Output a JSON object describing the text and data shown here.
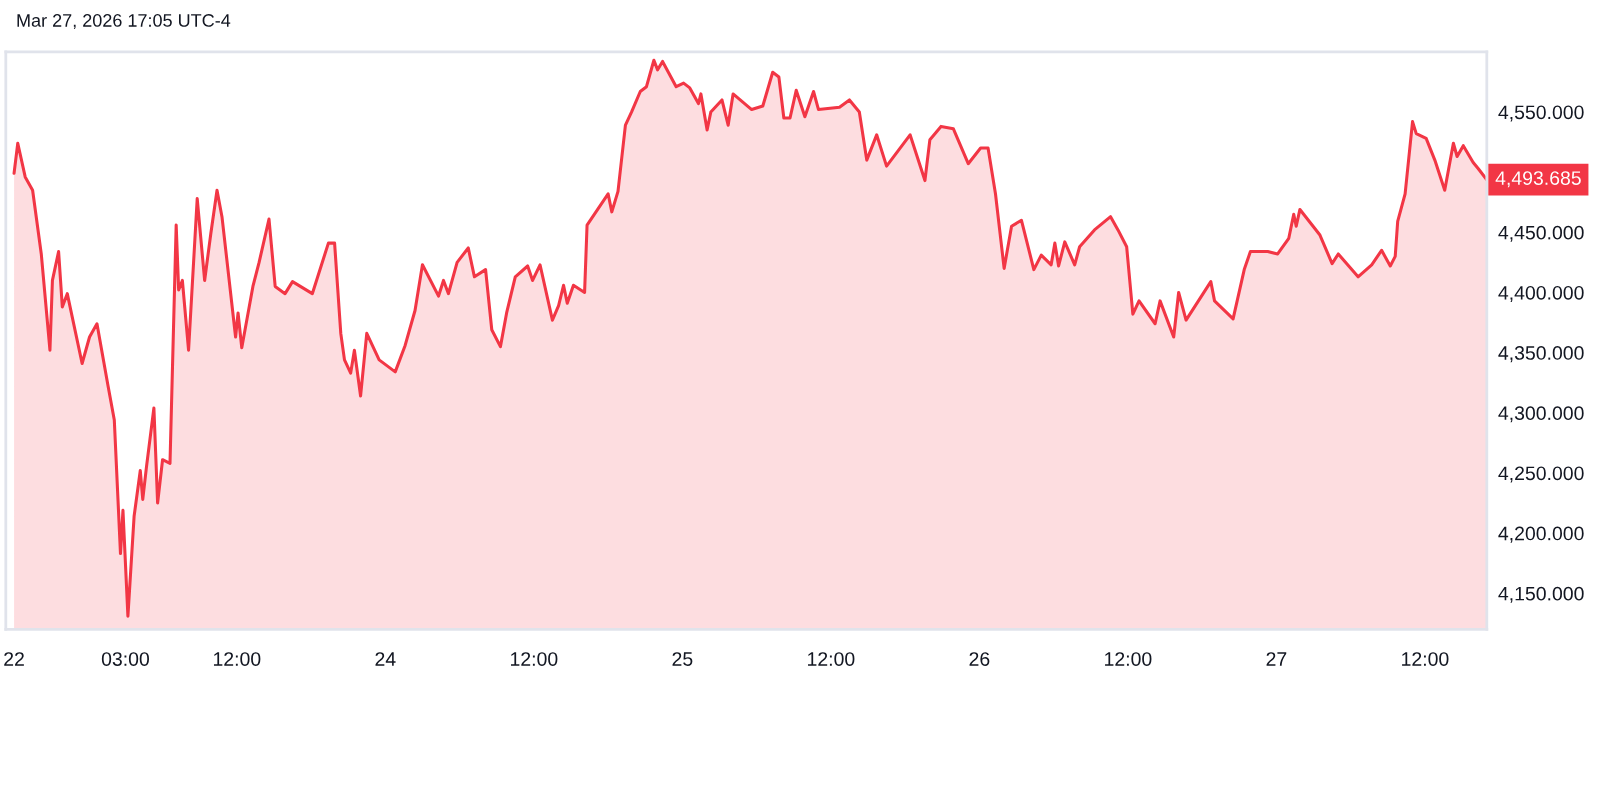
{
  "chart_data": {
    "type": "area",
    "annotations": [
      "Mar 27, 2026 17:05 UTC-4",
      {
        "text": "4,493.685",
        "x": "2026-03-27T17:00",
        "y": 4493.685
      }
    ],
    "x": [
      "2026-03-22T18:00",
      "2026-03-22T18:18",
      "2026-03-22T18:54",
      "2026-03-22T19:30",
      "2026-03-22T20:12",
      "2026-03-22T20:54",
      "2026-03-22T21:06",
      "2026-03-22T21:36",
      "2026-03-22T21:54",
      "2026-03-22T22:18",
      "2026-03-22T23:30",
      "2026-03-23T00:06",
      "2026-03-23T00:42",
      "2026-03-23T01:36",
      "2026-03-23T02:06",
      "2026-03-23T02:36",
      "2026-03-23T02:48",
      "2026-03-23T03:12",
      "2026-03-23T03:42",
      "2026-03-23T04:12",
      "2026-03-23T04:24",
      "2026-03-23T04:42",
      "2026-03-23T05:18",
      "2026-03-23T05:36",
      "2026-03-23T06:00",
      "2026-03-23T06:36",
      "2026-03-23T07:06",
      "2026-03-23T07:18",
      "2026-03-23T07:36",
      "2026-03-23T08:06",
      "2026-03-23T08:48",
      "2026-03-23T09:24",
      "2026-03-23T09:54",
      "2026-03-23T10:24",
      "2026-03-23T10:48",
      "2026-03-23T11:54",
      "2026-03-23T12:06",
      "2026-03-23T12:24",
      "2026-03-23T13:18",
      "2026-03-23T13:48",
      "2026-03-23T14:36",
      "2026-03-23T15:06",
      "2026-03-23T15:54",
      "2026-03-23T16:30",
      "2026-03-23T18:06",
      "2026-03-23T19:24",
      "2026-03-23T19:54",
      "2026-03-23T20:24",
      "2026-03-23T20:42",
      "2026-03-23T21:12",
      "2026-03-23T21:30",
      "2026-03-23T22:00",
      "2026-03-23T22:30",
      "2026-03-23T23:30",
      "2026-03-24T00:48",
      "2026-03-24T01:36",
      "2026-03-24T02:24",
      "2026-03-24T03:00",
      "2026-03-24T04:18",
      "2026-03-24T04:42",
      "2026-03-24T05:06",
      "2026-03-24T05:48",
      "2026-03-24T06:42",
      "2026-03-24T07:12",
      "2026-03-24T08:06",
      "2026-03-24T08:36",
      "2026-03-24T09:18",
      "2026-03-24T09:48",
      "2026-03-24T10:30",
      "2026-03-24T11:30",
      "2026-03-24T11:54",
      "2026-03-24T12:30",
      "2026-03-24T13:30",
      "2026-03-24T14:00",
      "2026-03-24T14:24",
      "2026-03-24T14:42",
      "2026-03-24T15:12",
      "2026-03-24T16:06",
      "2026-03-24T16:18",
      "2026-03-24T18:00",
      "2026-03-24T18:18",
      "2026-03-24T18:48",
      "2026-03-24T19:24",
      "2026-03-24T19:54",
      "2026-03-24T20:36",
      "2026-03-24T21:06",
      "2026-03-24T21:42",
      "2026-03-24T22:00",
      "2026-03-24T22:24",
      "2026-03-24T23:30",
      "2026-03-25T00:06",
      "2026-03-25T00:36",
      "2026-03-25T01:18",
      "2026-03-25T01:30",
      "2026-03-25T02:00",
      "2026-03-25T02:18",
      "2026-03-25T03:12",
      "2026-03-25T03:42",
      "2026-03-25T04:06",
      "2026-03-25T05:36",
      "2026-03-25T06:30",
      "2026-03-25T07:18",
      "2026-03-25T07:48",
      "2026-03-25T08:12",
      "2026-03-25T08:42",
      "2026-03-25T09:12",
      "2026-03-25T09:54",
      "2026-03-25T10:36",
      "2026-03-25T11:00",
      "2026-03-25T12:42",
      "2026-03-25T13:30",
      "2026-03-25T14:18",
      "2026-03-25T14:54",
      "2026-03-25T15:42",
      "2026-03-25T16:30",
      "2026-03-25T18:24",
      "2026-03-25T19:36",
      "2026-03-25T20:00",
      "2026-03-25T20:54",
      "2026-03-25T21:54",
      "2026-03-25T23:06",
      "2026-03-26T00:06",
      "2026-03-26T00:42",
      "2026-03-26T01:18",
      "2026-03-26T02:00",
      "2026-03-26T02:36",
      "2026-03-26T03:24",
      "2026-03-26T04:24",
      "2026-03-26T05:00",
      "2026-03-26T05:48",
      "2026-03-26T06:06",
      "2026-03-26T06:24",
      "2026-03-26T06:54",
      "2026-03-26T07:42",
      "2026-03-26T08:06",
      "2026-03-26T09:18",
      "2026-03-26T10:36",
      "2026-03-26T11:12",
      "2026-03-26T11:54",
      "2026-03-26T12:24",
      "2026-03-26T12:54",
      "2026-03-26T14:12",
      "2026-03-26T14:36",
      "2026-03-26T15:42",
      "2026-03-26T16:06",
      "2026-03-26T16:42",
      "2026-03-26T18:42",
      "2026-03-26T19:00",
      "2026-03-26T20:30",
      "2026-03-26T21:24",
      "2026-03-26T21:54",
      "2026-03-26T23:18",
      "2026-03-27T00:06",
      "2026-03-27T01:00",
      "2026-03-27T01:24",
      "2026-03-27T01:36",
      "2026-03-27T01:54",
      "2026-03-27T03:30",
      "2026-03-27T04:30",
      "2026-03-27T05:00",
      "2026-03-27T06:36",
      "2026-03-27T07:42",
      "2026-03-27T08:30",
      "2026-03-27T09:12",
      "2026-03-27T09:36",
      "2026-03-27T09:48",
      "2026-03-27T10:24",
      "2026-03-27T11:00",
      "2026-03-27T11:18",
      "2026-03-27T12:06",
      "2026-03-27T12:48",
      "2026-03-27T13:36",
      "2026-03-27T14:18",
      "2026-03-27T14:36",
      "2026-03-27T15:06",
      "2026-03-27T15:54",
      "2026-03-27T16:18",
      "2026-03-27T17:00"
    ],
    "series": [
      {
        "color": "#f23645",
        "values": [
          4499,
          4524,
          4496,
          4485,
          4432,
          4352,
          4410,
          4434,
          4388,
          4399,
          4341,
          4363,
          4374,
          4322,
          4294,
          4183,
          4219,
          4131,
          4214,
          4252,
          4228,
          4255,
          4304,
          4225,
          4261,
          4258,
          4456,
          4402,
          4410,
          4352,
          4478,
          4410,
          4449,
          4485,
          4463,
          4363,
          4383,
          4354,
          4405,
          4425,
          4461,
          4405,
          4399,
          4409,
          4399,
          4441,
          4441,
          4366,
          4344,
          4333,
          4352,
          4314,
          4366,
          4344,
          4334,
          4356,
          4385,
          4423,
          4397,
          4410,
          4399,
          4425,
          4437,
          4413,
          4419,
          4369,
          4355,
          4383,
          4413,
          4422,
          4410,
          4423,
          4377,
          4389,
          4406,
          4391,
          4406,
          4400,
          4456,
          4482,
          4467,
          4484,
          4539,
          4550,
          4567,
          4571,
          4593,
          4585,
          4592,
          4571,
          4574,
          4570,
          4557,
          4565,
          4535,
          4550,
          4560,
          4539,
          4565,
          4552,
          4555,
          4583,
          4579,
          4545,
          4545,
          4568,
          4546,
          4567,
          4552,
          4554,
          4560,
          4550,
          4510,
          4531,
          4505,
          4531,
          4493,
          4527,
          4538,
          4536,
          4507,
          4520,
          4520,
          4482,
          4420,
          4455,
          4460,
          4419,
          4431,
          4423,
          4441,
          4422,
          4442,
          4423,
          4438,
          4452,
          4463,
          4452,
          4438,
          4382,
          4393,
          4374,
          4393,
          4363,
          4400,
          4377,
          4409,
          4393,
          4378,
          4419,
          4434,
          4434,
          4432,
          4445,
          4465,
          4455,
          4469,
          4448,
          4424,
          4432,
          4413,
          4423,
          4435,
          4422,
          4430,
          4459,
          4482,
          4542,
          4532,
          4528,
          4510,
          4485,
          4524,
          4513,
          4522,
          4508,
          4503,
          4493.685
        ]
      }
    ],
    "xlim": [
      "2026-03-22T17:20",
      "2026-03-27T17:00"
    ],
    "xticks": [
      {
        "value": "2026-03-22T18:00",
        "label": "22"
      },
      {
        "value": "2026-03-23T03:00",
        "label": "03:00"
      },
      {
        "value": "2026-03-23T12:00",
        "label": "12:00"
      },
      {
        "value": "2026-03-24",
        "label": "24"
      },
      {
        "value": "2026-03-24T12:00",
        "label": "12:00"
      },
      {
        "value": "2026-03-25",
        "label": "25"
      },
      {
        "value": "2026-03-25T12:00",
        "label": "12:00"
      },
      {
        "value": "2026-03-26",
        "label": "26"
      },
      {
        "value": "2026-03-26T12:00",
        "label": "12:00"
      },
      {
        "value": "2026-03-27",
        "label": "27"
      },
      {
        "value": "2026-03-27T12:00",
        "label": "12:00"
      }
    ],
    "ylim": [
      4120,
      4600
    ],
    "yticks": [
      {
        "value": 4150,
        "label": "4,150.000"
      },
      {
        "value": 4200,
        "label": "4,200.000"
      },
      {
        "value": 4250,
        "label": "4,250.000"
      },
      {
        "value": 4300,
        "label": "4,300.000"
      },
      {
        "value": 4350,
        "label": "4,350.000"
      },
      {
        "value": 4400,
        "label": "4,400.000"
      },
      {
        "value": 4450,
        "label": "4,450.000"
      },
      {
        "value": 4550,
        "label": "4,550.000"
      }
    ],
    "line_style": "solid",
    "marker": "none"
  }
}
